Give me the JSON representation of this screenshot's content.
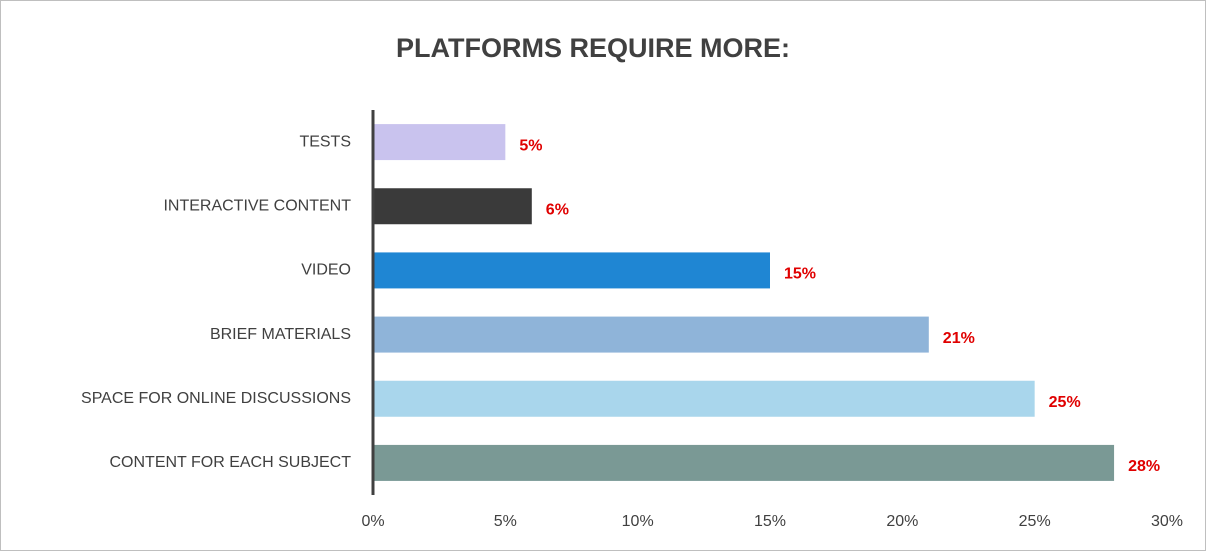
{
  "chart_data": {
    "type": "barh",
    "title": "PLATFORMS REQUIRE MORE:",
    "categories": [
      "TESTS",
      "INTERACTIVE CONTENT",
      "VIDEO",
      "BRIEF MATERIALS",
      "SPACE FOR ONLINE DISCUSSIONS",
      "CONTENT FOR EACH SUBJECT"
    ],
    "values": [
      5,
      6,
      15,
      21,
      25,
      28
    ],
    "value_labels": [
      "5%",
      "6%",
      "15%",
      "21%",
      "25%",
      "28%"
    ],
    "colors": [
      "#c9c3ee",
      "#3a3a3a",
      "#1f86d3",
      "#8fb4d9",
      "#a9d6ec",
      "#7a9995"
    ],
    "xlim": [
      0,
      30
    ],
    "xticks": [
      {
        "value": 0,
        "label": "0%"
      },
      {
        "value": 5,
        "label": "5%"
      },
      {
        "value": 10,
        "label": "10%"
      },
      {
        "value": 15,
        "label": "15%"
      },
      {
        "value": 20,
        "label": "20%"
      },
      {
        "value": 25,
        "label": "25%"
      },
      {
        "value": 30,
        "label": "30%"
      }
    ]
  }
}
